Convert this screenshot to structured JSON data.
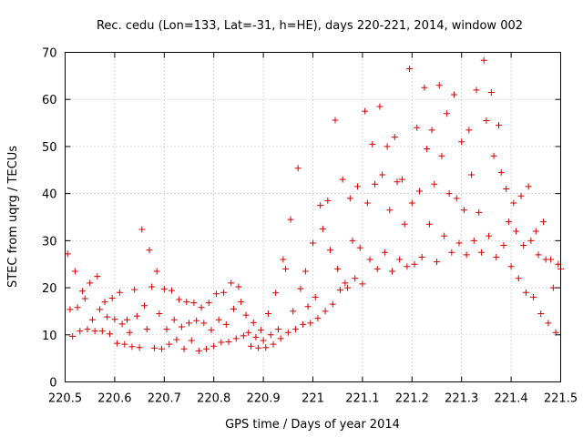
{
  "chart_data": {
    "type": "scatter",
    "title": "Rec. cedu (Lon=133, Lat=-31, h=HE), days 220-221, 2014, window 002",
    "xlabel": "GPS time / Days of year 2014",
    "ylabel": "STEC from uqrg / TECUs",
    "xlim": [
      220.5,
      221.5
    ],
    "ylim": [
      0,
      70
    ],
    "x_ticks": [
      220.5,
      220.6,
      220.7,
      220.8,
      220.9,
      221.0,
      221.1,
      221.2,
      221.3,
      221.4,
      221.5
    ],
    "x_tick_labels": [
      "220.5",
      "220.6",
      "220.7",
      "220.8",
      "220.9",
      "221",
      "221.1",
      "221.2",
      "221.3",
      "221.4",
      "221.5"
    ],
    "y_ticks": [
      0,
      10,
      20,
      30,
      40,
      50,
      60,
      70
    ],
    "y_tick_labels": [
      "0",
      "10",
      "20",
      "30",
      "40",
      "50",
      "60",
      "70"
    ],
    "grid": true,
    "marker": "plus",
    "marker_color": "#d40000",
    "points": [
      [
        220.505,
        27.2
      ],
      [
        220.51,
        15.4
      ],
      [
        220.515,
        9.7
      ],
      [
        220.52,
        23.5
      ],
      [
        220.525,
        15.8
      ],
      [
        220.53,
        10.8
      ],
      [
        220.535,
        19.3
      ],
      [
        220.54,
        17.7
      ],
      [
        220.545,
        11.2
      ],
      [
        220.55,
        21.0
      ],
      [
        220.555,
        13.2
      ],
      [
        220.56,
        10.8
      ],
      [
        220.565,
        22.4
      ],
      [
        220.57,
        15.4
      ],
      [
        220.575,
        10.8
      ],
      [
        220.58,
        17.0
      ],
      [
        220.585,
        13.8
      ],
      [
        220.59,
        10.2
      ],
      [
        220.595,
        17.8
      ],
      [
        220.6,
        13.3
      ],
      [
        220.605,
        8.2
      ],
      [
        220.61,
        19.0
      ],
      [
        220.615,
        12.3
      ],
      [
        220.62,
        8.0
      ],
      [
        220.625,
        13.2
      ],
      [
        220.63,
        10.5
      ],
      [
        220.635,
        7.5
      ],
      [
        220.64,
        19.6
      ],
      [
        220.645,
        14.0
      ],
      [
        220.65,
        7.3
      ],
      [
        220.655,
        32.4
      ],
      [
        220.66,
        16.2
      ],
      [
        220.665,
        11.2
      ],
      [
        220.67,
        28.0
      ],
      [
        220.675,
        20.2
      ],
      [
        220.68,
        7.2
      ],
      [
        220.685,
        23.5
      ],
      [
        220.69,
        14.5
      ],
      [
        220.695,
        7.0
      ],
      [
        220.7,
        19.7
      ],
      [
        220.705,
        11.2
      ],
      [
        220.71,
        8.0
      ],
      [
        220.715,
        19.4
      ],
      [
        220.72,
        13.2
      ],
      [
        220.725,
        9.0
      ],
      [
        220.73,
        17.5
      ],
      [
        220.735,
        11.7
      ],
      [
        220.74,
        7.0
      ],
      [
        220.745,
        17.0
      ],
      [
        220.75,
        12.5
      ],
      [
        220.755,
        8.8
      ],
      [
        220.76,
        16.8
      ],
      [
        220.765,
        13.0
      ],
      [
        220.77,
        6.6
      ],
      [
        220.775,
        15.8
      ],
      [
        220.78,
        12.5
      ],
      [
        220.785,
        7.0
      ],
      [
        220.79,
        16.8
      ],
      [
        220.795,
        11.0
      ],
      [
        220.8,
        7.6
      ],
      [
        220.805,
        18.7
      ],
      [
        220.81,
        13.2
      ],
      [
        220.815,
        8.4
      ],
      [
        220.82,
        19.0
      ],
      [
        220.825,
        12.2
      ],
      [
        220.83,
        8.5
      ],
      [
        220.835,
        21.0
      ],
      [
        220.84,
        15.5
      ],
      [
        220.845,
        9.2
      ],
      [
        220.85,
        20.2
      ],
      [
        220.855,
        17.0
      ],
      [
        220.86,
        9.8
      ],
      [
        220.865,
        14.2
      ],
      [
        220.87,
        10.5
      ],
      [
        220.875,
        7.6
      ],
      [
        220.88,
        12.6
      ],
      [
        220.885,
        9.5
      ],
      [
        220.89,
        7.2
      ],
      [
        220.895,
        11.0
      ],
      [
        220.9,
        8.8
      ],
      [
        220.905,
        7.3
      ],
      [
        220.91,
        14.5
      ],
      [
        220.915,
        10.0
      ],
      [
        220.92,
        8.0
      ],
      [
        220.925,
        18.9
      ],
      [
        220.93,
        11.2
      ],
      [
        220.935,
        9.2
      ],
      [
        220.94,
        26.0
      ],
      [
        220.945,
        24.0
      ],
      [
        220.95,
        10.5
      ],
      [
        220.955,
        34.5
      ],
      [
        220.96,
        15.0
      ],
      [
        220.965,
        11.2
      ],
      [
        220.97,
        45.4
      ],
      [
        220.975,
        19.8
      ],
      [
        220.98,
        12.2
      ],
      [
        220.985,
        23.5
      ],
      [
        220.99,
        16.0
      ],
      [
        220.995,
        12.5
      ],
      [
        221.0,
        29.5
      ],
      [
        221.005,
        18.0
      ],
      [
        221.01,
        13.5
      ],
      [
        221.015,
        37.5
      ],
      [
        221.02,
        32.5
      ],
      [
        221.025,
        15.0
      ],
      [
        221.03,
        38.5
      ],
      [
        221.035,
        28.0
      ],
      [
        221.04,
        16.5
      ],
      [
        221.045,
        55.6
      ],
      [
        221.05,
        24.0
      ],
      [
        221.055,
        19.5
      ],
      [
        221.06,
        43.0
      ],
      [
        221.065,
        21.0
      ],
      [
        221.07,
        20.0
      ],
      [
        221.075,
        39.0
      ],
      [
        221.08,
        30.0
      ],
      [
        221.085,
        22.0
      ],
      [
        221.09,
        41.5
      ],
      [
        221.095,
        28.5
      ],
      [
        221.1,
        20.8
      ],
      [
        221.105,
        57.5
      ],
      [
        221.11,
        38.0
      ],
      [
        221.115,
        26.0
      ],
      [
        221.12,
        50.5
      ],
      [
        221.125,
        42.0
      ],
      [
        221.13,
        24.0
      ],
      [
        221.135,
        58.5
      ],
      [
        221.14,
        44.0
      ],
      [
        221.145,
        27.5
      ],
      [
        221.15,
        50.0
      ],
      [
        221.155,
        36.5
      ],
      [
        221.16,
        23.5
      ],
      [
        221.165,
        52.0
      ],
      [
        221.17,
        42.5
      ],
      [
        221.175,
        26.0
      ],
      [
        221.18,
        43.0
      ],
      [
        221.185,
        33.5
      ],
      [
        221.19,
        24.5
      ],
      [
        221.195,
        66.5
      ],
      [
        221.2,
        38.0
      ],
      [
        221.205,
        25.0
      ],
      [
        221.21,
        54.0
      ],
      [
        221.215,
        40.5
      ],
      [
        221.22,
        26.5
      ],
      [
        221.225,
        62.5
      ],
      [
        221.23,
        49.5
      ],
      [
        221.235,
        33.5
      ],
      [
        221.24,
        53.5
      ],
      [
        221.245,
        42.0
      ],
      [
        221.25,
        25.5
      ],
      [
        221.255,
        63.0
      ],
      [
        221.26,
        48.0
      ],
      [
        221.265,
        31.0
      ],
      [
        221.27,
        57.0
      ],
      [
        221.275,
        40.0
      ],
      [
        221.28,
        27.5
      ],
      [
        221.285,
        61.0
      ],
      [
        221.29,
        39.0
      ],
      [
        221.295,
        29.5
      ],
      [
        221.3,
        51.0
      ],
      [
        221.305,
        36.5
      ],
      [
        221.31,
        27.0
      ],
      [
        221.315,
        53.5
      ],
      [
        221.32,
        44.0
      ],
      [
        221.325,
        30.0
      ],
      [
        221.33,
        62.0
      ],
      [
        221.335,
        36.0
      ],
      [
        221.34,
        27.5
      ],
      [
        221.345,
        68.3
      ],
      [
        221.35,
        55.5
      ],
      [
        221.355,
        31.0
      ],
      [
        221.36,
        61.5
      ],
      [
        221.365,
        48.0
      ],
      [
        221.37,
        26.5
      ],
      [
        221.375,
        54.5
      ],
      [
        221.38,
        44.5
      ],
      [
        221.385,
        29.0
      ],
      [
        221.39,
        41.0
      ],
      [
        221.395,
        34.0
      ],
      [
        221.4,
        24.5
      ],
      [
        221.405,
        38.0
      ],
      [
        221.41,
        32.0
      ],
      [
        221.415,
        22.0
      ],
      [
        221.42,
        39.5
      ],
      [
        221.425,
        29.0
      ],
      [
        221.43,
        19.0
      ],
      [
        221.435,
        41.5
      ],
      [
        221.44,
        30.0
      ],
      [
        221.445,
        18.0
      ],
      [
        221.45,
        32.0
      ],
      [
        221.455,
        27.0
      ],
      [
        221.46,
        14.5
      ],
      [
        221.465,
        34.0
      ],
      [
        221.47,
        26.0
      ],
      [
        221.475,
        12.5
      ],
      [
        221.48,
        26.0
      ],
      [
        221.485,
        20.0
      ],
      [
        221.49,
        10.5
      ],
      [
        221.495,
        25.0
      ],
      [
        221.5,
        24.0
      ]
    ]
  }
}
